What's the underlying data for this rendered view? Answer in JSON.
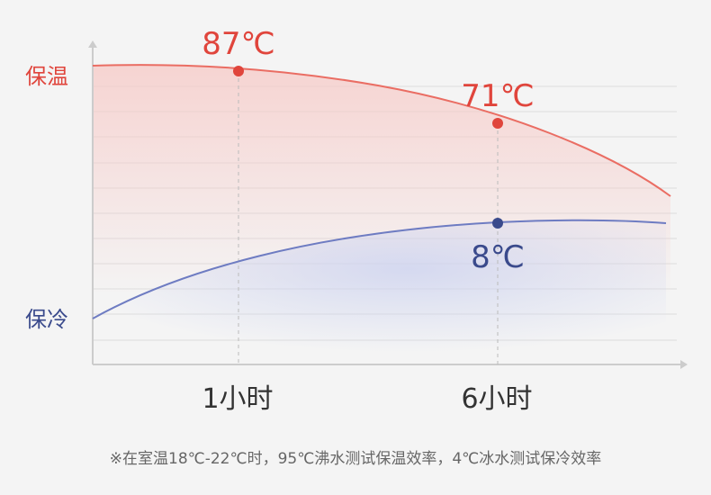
{
  "colors": {
    "warm": "#e0453c",
    "warm_line": "#ea6d63",
    "cold": "#3a4a8c",
    "cold_line": "#6e7cc2",
    "axis": "#cccccc",
    "grid": "#dddddd",
    "guide": "#bbbbbb"
  },
  "chart_data": {
    "type": "line",
    "x_ticks": [
      "1小时",
      "6小时"
    ],
    "series": [
      {
        "name": "保温",
        "color": "#e0453c",
        "marked_points": [
          {
            "x_label": "1小时",
            "value": 87,
            "label": "87℃"
          },
          {
            "x_label": "6小时",
            "value": 71,
            "label": "71℃"
          }
        ]
      },
      {
        "name": "保冷",
        "color": "#3a4a8c",
        "marked_points": [
          {
            "x_label": "6小时",
            "value": 8,
            "label": "8℃"
          }
        ]
      }
    ],
    "grid": true,
    "footnote": "※在室温18℃-22℃时，95℃沸水测试保温效率，4℃冰水测试保冷效率"
  }
}
